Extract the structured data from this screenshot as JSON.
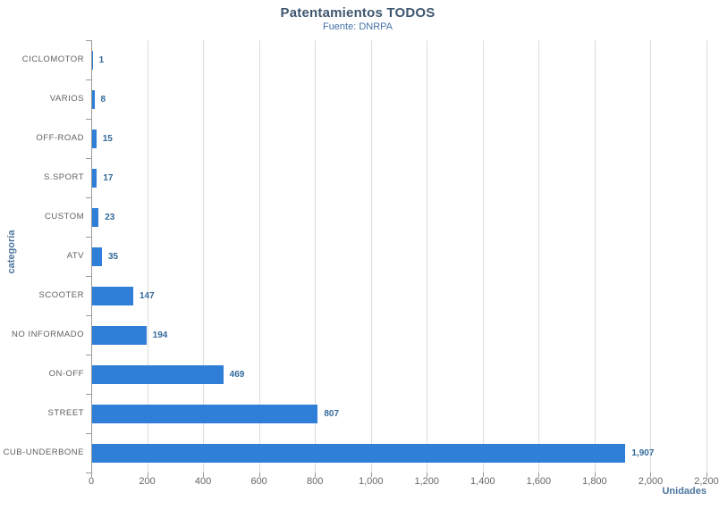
{
  "chart_data": {
    "type": "bar",
    "orientation": "horizontal",
    "title": "Patentamientos TODOS",
    "subtitle": "Fuente: DNRPA",
    "xlabel": "Unidades",
    "ylabel": "categoría",
    "categories": [
      "CICLOMOTOR",
      "VARIOS",
      "OFF-ROAD",
      "S.SPORT",
      "CUSTOM",
      "ATV",
      "SCOOTER",
      "NO INFORMADO",
      "ON-OFF",
      "STREET",
      "CUB-UNDERBONE"
    ],
    "values": [
      1,
      8,
      15,
      17,
      23,
      35,
      147,
      194,
      469,
      807,
      1907
    ],
    "value_labels": [
      "1",
      "8",
      "15",
      "17",
      "23",
      "35",
      "147",
      "194",
      "469",
      "807",
      "1,907"
    ],
    "xlim": [
      0,
      2200
    ],
    "x_ticks": [
      0,
      200,
      400,
      600,
      800,
      1000,
      1200,
      1400,
      1600,
      1800,
      2000,
      2200
    ],
    "x_tick_labels": [
      "0",
      "200",
      "400",
      "600",
      "800",
      "1,000",
      "1,200",
      "1,400",
      "1,600",
      "1,800",
      "2,000",
      "2,200"
    ],
    "grid": true,
    "legend": false,
    "colors": {
      "bar": "#2f7ed8",
      "value_label": "#336a9b",
      "category_label": "#606060",
      "tick_label": "#666666",
      "axis_title": "#4d759e",
      "title": "#3E576F",
      "subtitle": "#4572A7",
      "gridline": "#dcdcdc",
      "axis_line": "#9a9a9a"
    }
  }
}
